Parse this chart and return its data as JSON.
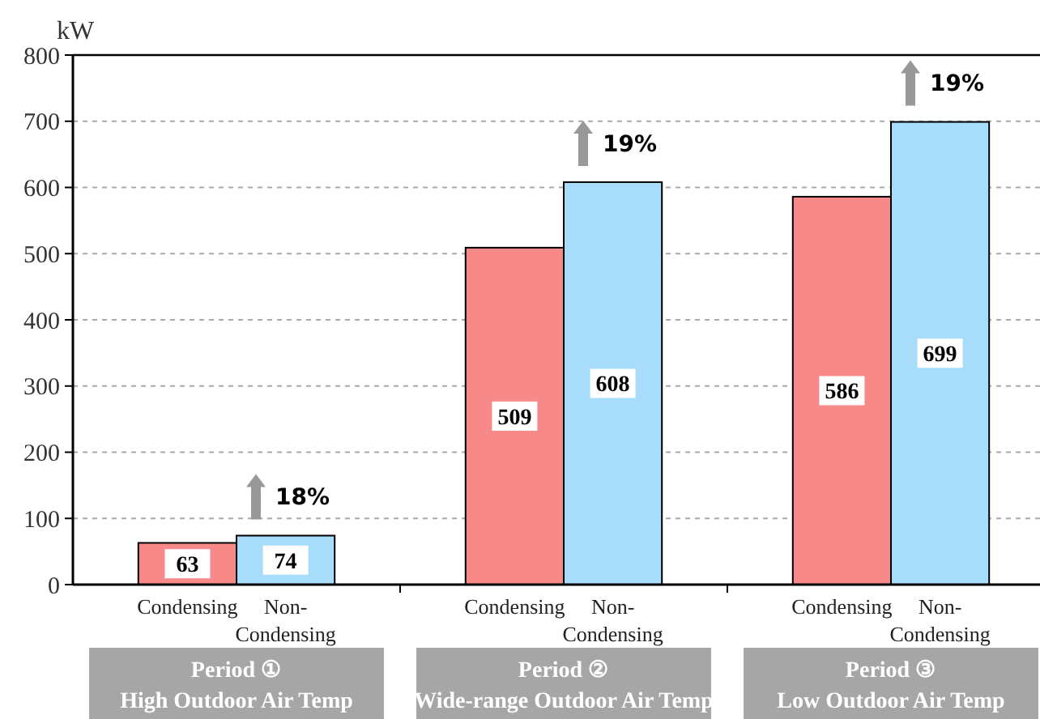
{
  "chart_data": {
    "type": "bar",
    "ylabel": "kW",
    "categories": [
      "Period ①\nHigh Outdoor Air Temp",
      "Period ②\nWide-range Outdoor Air Temp",
      "Period ③\nLow Outdoor Air Temp"
    ],
    "series": [
      {
        "name": "Condensing",
        "color": "#f78a89",
        "values": [
          63,
          509,
          586
        ]
      },
      {
        "name": "Non-\nCondensing",
        "color": "#a7dcfb",
        "values": [
          74,
          608,
          699
        ]
      }
    ],
    "ylim": [
      0,
      800
    ],
    "yticks": [
      0,
      100,
      200,
      300,
      400,
      500,
      600,
      700,
      800
    ],
    "grid": "y",
    "data_labels": true,
    "annotations": [
      "18%",
      "19%",
      "19%"
    ]
  }
}
